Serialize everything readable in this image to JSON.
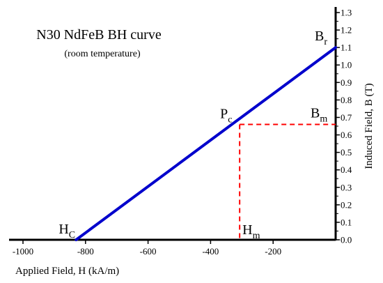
{
  "chart_data": {
    "type": "line",
    "title": "N30 NdFeB BH curve",
    "subtitle": "(room temperature)",
    "xlabel": "Applied Field, H (kA/m)",
    "ylabel": "Induced Field, B (T)",
    "xlim": [
      -1000,
      0
    ],
    "ylim": [
      0,
      1.3
    ],
    "x_ticks": [
      -1000,
      -800,
      -600,
      -400,
      -200
    ],
    "x_tick_labels": [
      "-1000",
      "-800",
      "-600",
      "-400",
      "-200"
    ],
    "y_ticks": [
      0.0,
      0.1,
      0.2,
      0.3,
      0.4,
      0.5,
      0.6,
      0.7,
      0.8,
      0.9,
      1.0,
      1.1,
      1.2,
      1.3
    ],
    "y_tick_labels": [
      "0.0",
      "0.1",
      "0.2",
      "0.3",
      "0.4",
      "0.5",
      "0.6",
      "0.7",
      "0.8",
      "0.9",
      "1.0",
      "1.1",
      "1.2",
      "1.3"
    ],
    "y_axis_position": "right",
    "grid": false,
    "series": [
      {
        "points": [
          [
            -830,
            0.0
          ],
          [
            0,
            1.1
          ]
        ],
        "color": "#0000CC"
      }
    ],
    "operating_point": {
      "x": -307,
      "y": 0.66,
      "color": "#FF0000",
      "style": "dashed"
    },
    "annotations": {
      "Hc": {
        "main": "H",
        "sub": "C",
        "x": -830,
        "y": 0.0
      },
      "Br": {
        "main": "B",
        "sub": "r",
        "x": 0,
        "y": 1.1
      },
      "Pc": {
        "main": "P",
        "sub": "c",
        "x": -307,
        "y": 0.66
      },
      "Bm": {
        "main": "B",
        "sub": "m",
        "x": 0,
        "y": 0.66
      },
      "Hm": {
        "main": "H",
        "sub": "m",
        "x": -307,
        "y": 0.0
      }
    }
  }
}
